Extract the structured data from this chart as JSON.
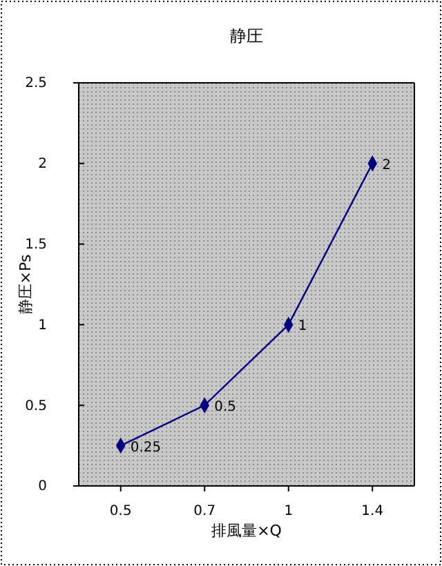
{
  "chart_data": {
    "type": "line",
    "title": "静圧",
    "xlabel": "排風量×Q",
    "ylabel": "静圧×Ps",
    "categories": [
      "0.5",
      "0.7",
      "1",
      "1.4"
    ],
    "series": [
      {
        "color": "#000080",
        "values": [
          0.25,
          0.5,
          1,
          2
        ]
      }
    ],
    "ylim": [
      0,
      2.5
    ],
    "yticks": [
      0,
      0.5,
      1,
      1.5,
      2,
      2.5
    ],
    "marker": "diamond",
    "data_labels": true
  }
}
